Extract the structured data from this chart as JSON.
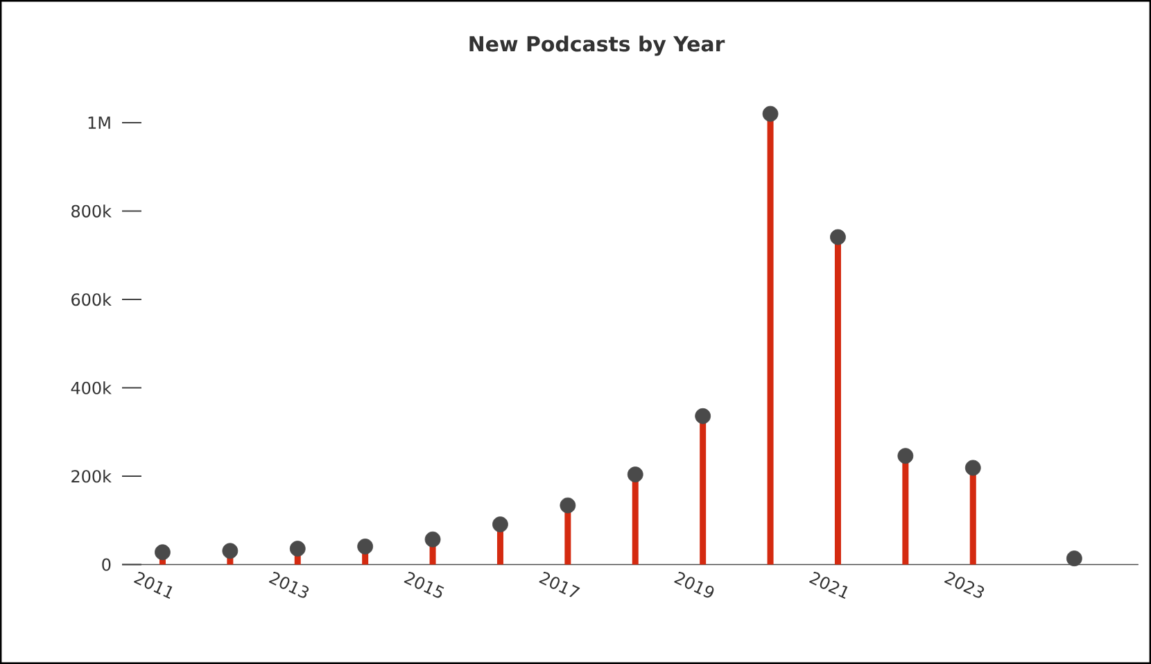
{
  "chart_data": {
    "type": "lollipop",
    "title": "New Podcasts by Year",
    "x": [
      2011,
      2012,
      2013,
      2014,
      2015,
      2016,
      2017,
      2018,
      2019,
      2020,
      2021,
      2022,
      2023,
      2024.5
    ],
    "series": [
      {
        "color": "#d42a10",
        "colors": [
          "#4a4a4a",
          "#4a4a4a",
          "#4a4a4a",
          "#4a4a4a",
          "#4a4a4a",
          "#4a4a4a",
          "#4a4a4a",
          "#4a4a4a",
          "#4a4a4a",
          "#4a4a4a",
          "#4a4a4a",
          "#4a4a4a",
          "#4a4a4a",
          "#4a4a4a"
        ],
        "values": [
          28000,
          31000,
          36000,
          41000,
          57000,
          91000,
          134000,
          204000,
          336000,
          1020000,
          741000,
          246000,
          219000,
          14000
        ]
      }
    ],
    "xlim": [
      2010.4,
      2025.45
    ],
    "xticks": [
      2011,
      2013,
      2015,
      2017,
      2019,
      2021,
      2023
    ],
    "ylim": [
      0,
      1020000
    ],
    "yticks": [
      0,
      {
        "value": 200000,
        "label": "200k"
      },
      {
        "value": 400000,
        "label": "400k"
      },
      {
        "value": 600000,
        "label": "600k"
      },
      {
        "value": 800000,
        "label": "800k"
      },
      {
        "value": 1000000,
        "label": "1M"
      }
    ],
    "marker": "circle",
    "grid": false
  }
}
